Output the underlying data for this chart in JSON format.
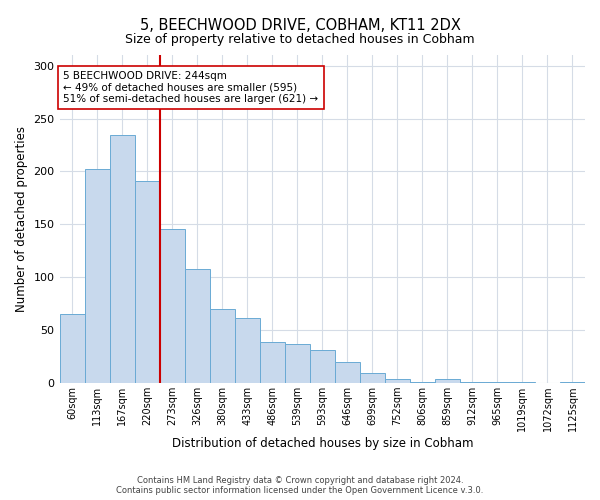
{
  "title1": "5, BEECHWOOD DRIVE, COBHAM, KT11 2DX",
  "title2": "Size of property relative to detached houses in Cobham",
  "xlabel": "Distribution of detached houses by size in Cobham",
  "ylabel": "Number of detached properties",
  "bin_labels": [
    "60sqm",
    "113sqm",
    "167sqm",
    "220sqm",
    "273sqm",
    "326sqm",
    "380sqm",
    "433sqm",
    "486sqm",
    "539sqm",
    "593sqm",
    "646sqm",
    "699sqm",
    "752sqm",
    "806sqm",
    "859sqm",
    "912sqm",
    "965sqm",
    "1019sqm",
    "1072sqm",
    "1125sqm"
  ],
  "bar_heights": [
    65,
    202,
    234,
    191,
    146,
    108,
    70,
    62,
    39,
    37,
    31,
    20,
    10,
    4,
    1,
    4,
    1,
    1,
    1,
    0,
    1
  ],
  "bar_color": "#c8d9ed",
  "bar_edge_color": "#6aaad4",
  "vline_x": 4,
  "vline_color": "#cc0000",
  "annotation_text": "5 BEECHWOOD DRIVE: 244sqm\n← 49% of detached houses are smaller (595)\n51% of semi-detached houses are larger (621) →",
  "annotation_box_color": "#ffffff",
  "annotation_box_edge": "#cc0000",
  "ylim": [
    0,
    310
  ],
  "yticks": [
    0,
    50,
    100,
    150,
    200,
    250,
    300
  ],
  "grid_color": "#d5dce6",
  "footer1": "Contains HM Land Registry data © Crown copyright and database right 2024.",
  "footer2": "Contains public sector information licensed under the Open Government Licence v.3.0.",
  "bg_color": "#ffffff"
}
